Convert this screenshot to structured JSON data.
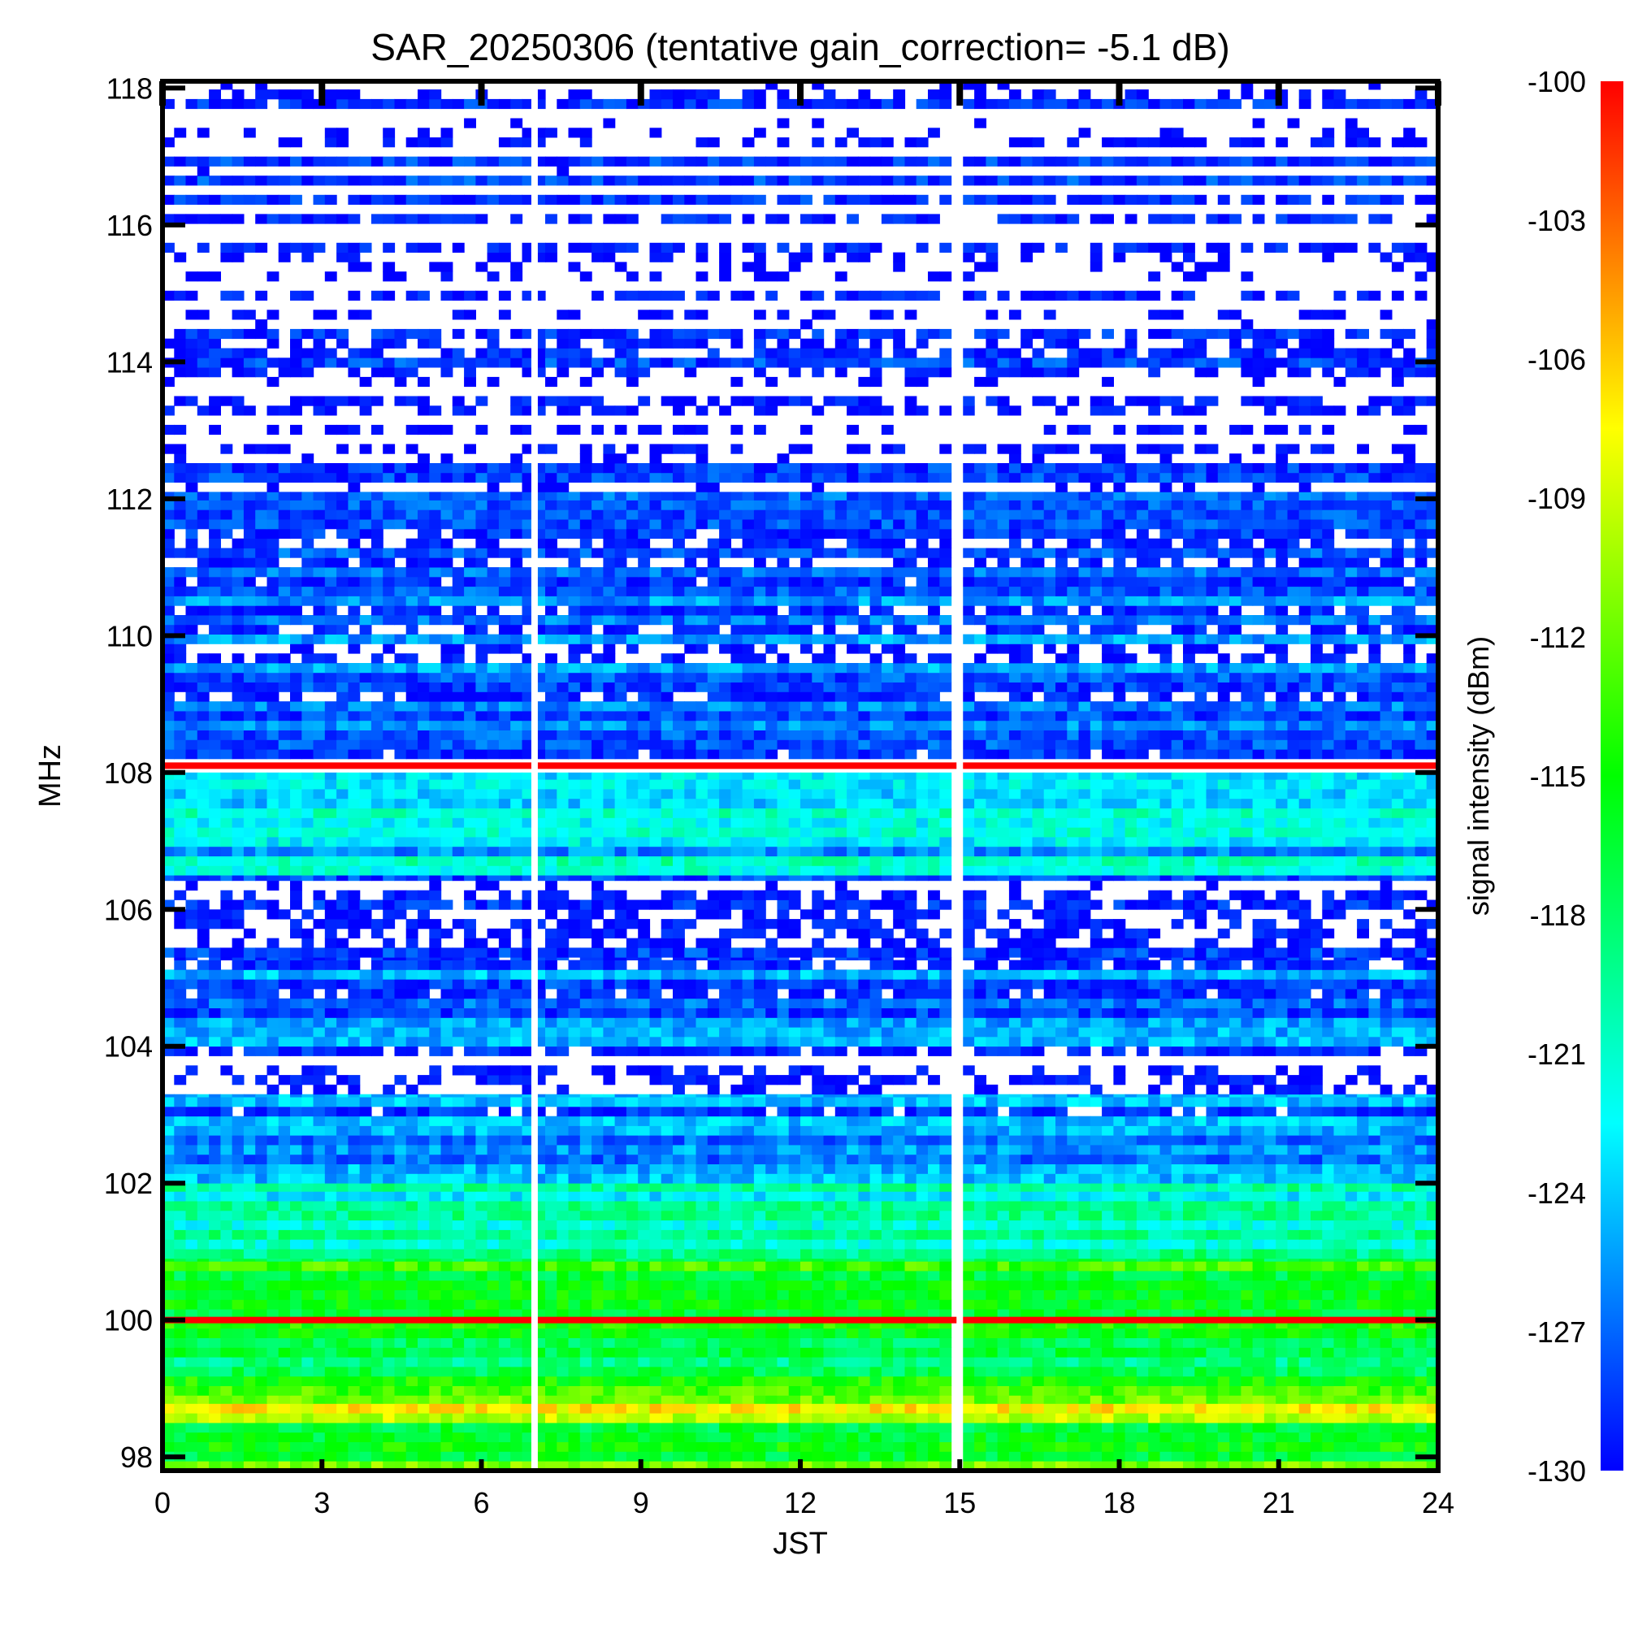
{
  "chart_data": {
    "type": "heatmap",
    "title": "SAR_20250306 (tentative gain_correction= -5.1 dB)",
    "xlabel": "JST",
    "ylabel": "MHz",
    "colorbar_label": "signal intensity (dBm)",
    "xlim": [
      0,
      24
    ],
    "ylim": [
      97.8,
      118.1
    ],
    "xticks": [
      0,
      3,
      6,
      9,
      12,
      15,
      18,
      21,
      24
    ],
    "yticks": [
      98,
      100,
      102,
      104,
      106,
      108,
      110,
      112,
      114,
      116,
      118
    ],
    "colorbar_ticks": [
      -100,
      -103,
      -106,
      -109,
      -112,
      -115,
      -118,
      -121,
      -124,
      -127,
      -130
    ],
    "color_range": [
      -130,
      -100
    ],
    "colormap": [
      "#0000ff",
      "#00ffff",
      "#00ff00",
      "#ffff00",
      "#ff0000"
    ],
    "no_data_color": "#ffffff",
    "gaps_jst": [
      7.0,
      15.0
    ],
    "strong_lines": [
      {
        "freq_mhz": 100.0,
        "level_dbm": -100
      },
      {
        "freq_mhz": 108.1,
        "level_dbm": -100
      }
    ],
    "bands": [
      {
        "from_mhz": 97.8,
        "to_mhz": 98.5,
        "level_dbm": -114
      },
      {
        "from_mhz": 98.5,
        "to_mhz": 98.9,
        "level_dbm": -110
      },
      {
        "from_mhz": 98.9,
        "to_mhz": 100.9,
        "level_dbm": -116
      },
      {
        "from_mhz": 100.9,
        "to_mhz": 102.0,
        "level_dbm": -121
      },
      {
        "from_mhz": 102.0,
        "to_mhz": 103.3,
        "level_dbm": -127
      },
      {
        "from_mhz": 103.3,
        "to_mhz": 104.0,
        "level_dbm": -132
      },
      {
        "from_mhz": 104.0,
        "to_mhz": 105.3,
        "level_dbm": -127
      },
      {
        "from_mhz": 105.3,
        "to_mhz": 106.5,
        "level_dbm": -131
      },
      {
        "from_mhz": 106.5,
        "to_mhz": 108.0,
        "level_dbm": -123
      },
      {
        "from_mhz": 108.2,
        "to_mhz": 112.1,
        "level_dbm": -128
      },
      {
        "from_mhz": 112.1,
        "to_mhz": 118.1,
        "level_dbm": -131
      }
    ]
  }
}
